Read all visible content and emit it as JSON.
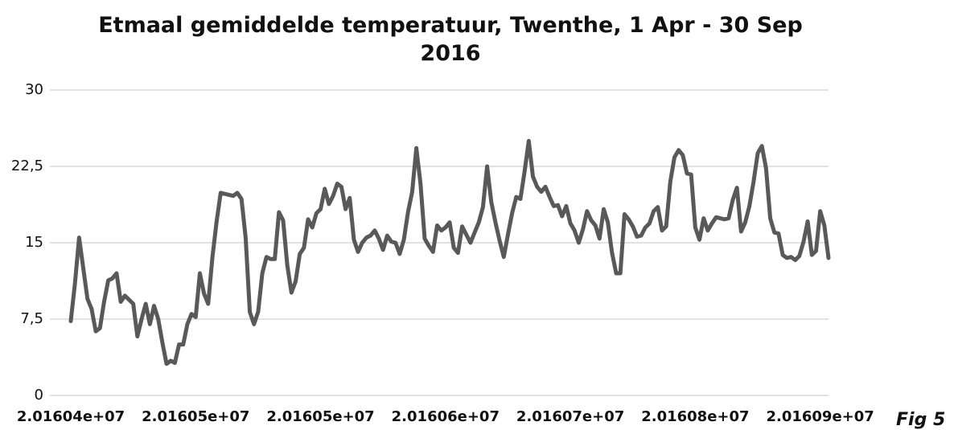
{
  "chart_data": {
    "type": "line",
    "title": "Etmaal gemiddelde temperatuur, Twenthe, 1 Apr - 30 Sep 2016",
    "annotation": "Fig 5",
    "color": "#595959",
    "grid": true,
    "ylim": [
      0,
      30
    ],
    "yticks": [
      0,
      {
        "value": 7.5,
        "label": "7,5"
      },
      15,
      {
        "value": 22.5,
        "label": "22,5"
      },
      30
    ],
    "categories": [
      "2.01604e+07",
      null,
      null,
      null,
      null,
      null,
      null,
      null,
      null,
      null,
      null,
      null,
      null,
      null,
      null,
      null,
      null,
      null,
      null,
      null,
      null,
      null,
      null,
      null,
      null,
      null,
      null,
      null,
      null,
      null,
      "2.01605e+07",
      null,
      null,
      null,
      null,
      null,
      null,
      null,
      null,
      null,
      null,
      null,
      null,
      null,
      null,
      null,
      null,
      null,
      null,
      null,
      null,
      null,
      null,
      null,
      null,
      null,
      null,
      null,
      null,
      null,
      "2.01605e+07",
      null,
      null,
      null,
      null,
      null,
      null,
      null,
      null,
      null,
      null,
      null,
      null,
      null,
      null,
      null,
      null,
      null,
      null,
      null,
      null,
      null,
      null,
      null,
      null,
      null,
      null,
      null,
      null,
      null,
      "2.01606e+07",
      null,
      null,
      null,
      null,
      null,
      null,
      null,
      null,
      null,
      null,
      null,
      null,
      null,
      null,
      null,
      null,
      null,
      null,
      null,
      null,
      null,
      null,
      null,
      null,
      null,
      null,
      null,
      null,
      null,
      "2.01607e+07",
      null,
      null,
      null,
      null,
      null,
      null,
      null,
      null,
      null,
      null,
      null,
      null,
      null,
      null,
      null,
      null,
      null,
      null,
      null,
      null,
      null,
      null,
      null,
      null,
      null,
      null,
      null,
      null,
      null,
      "2.01608e+07",
      null,
      null,
      null,
      null,
      null,
      null,
      null,
      null,
      null,
      null,
      null,
      null,
      null,
      null,
      null,
      null,
      null,
      null,
      null,
      null,
      null,
      null,
      null,
      null,
      null,
      null,
      null,
      null,
      null,
      "2.01609e+07",
      null,
      null
    ],
    "values": [
      7.3,
      11,
      15.5,
      12.5,
      9.5,
      8.5,
      6.3,
      6.6,
      9.2,
      11.3,
      11.5,
      12,
      9.2,
      9.8,
      9.4,
      9,
      5.8,
      7.5,
      9,
      7,
      8.8,
      7.5,
      5.2,
      3.1,
      3.4,
      3.2,
      5,
      5,
      7,
      8,
      7.7,
      12,
      10,
      9,
      13.5,
      17,
      19.9,
      19.8,
      19.7,
      19.6,
      19.9,
      19.3,
      15.5,
      8.2,
      7,
      8.2,
      12,
      13.6,
      13.4,
      13.4,
      18,
      17.2,
      12.8,
      10.1,
      11.2,
      13.9,
      14.5,
      17.3,
      16.5,
      17.9,
      18.3,
      20.3,
      18.8,
      19.6,
      20.8,
      20.5,
      18.3,
      19.4,
      15.3,
      14.1,
      15,
      15.5,
      15.7,
      16.2,
      15.4,
      14.3,
      15.7,
      15.1,
      15,
      13.9,
      15.3,
      18,
      20,
      24.3,
      20.8,
      15.4,
      14.7,
      14.1,
      16.7,
      16.2,
      16.5,
      17,
      14.5,
      14,
      16.6,
      15.8,
      15,
      16,
      17,
      18.5,
      22.5,
      19,
      17,
      15.2,
      13.6,
      15.8,
      17.9,
      19.5,
      19.3,
      22,
      25,
      21.5,
      20.5,
      20,
      20.5,
      19.5,
      18.6,
      18.7,
      17.6,
      18.6,
      16.9,
      16.2,
      15,
      16.3,
      18.1,
      17.2,
      16.7,
      15.4,
      18.3,
      17,
      14,
      12,
      12,
      17.8,
      17.3,
      16.6,
      15.6,
      15.7,
      16.5,
      16.9,
      18.1,
      18.5,
      16.2,
      16.6,
      21,
      23.4,
      24.1,
      23.6,
      21.8,
      21.7,
      16.5,
      15.3,
      17.4,
      16.2,
      16.9,
      17.5,
      17.4,
      17.3,
      17.4,
      19.2,
      20.4,
      16.1,
      17,
      18.6,
      21,
      23.8,
      24.5,
      22.3,
      17.4,
      16,
      15.9,
      13.8,
      13.5,
      13.6,
      13.3,
      13.7,
      15.1,
      17.1,
      13.8,
      14.2,
      18.1,
      16.7,
      13.5
    ]
  }
}
